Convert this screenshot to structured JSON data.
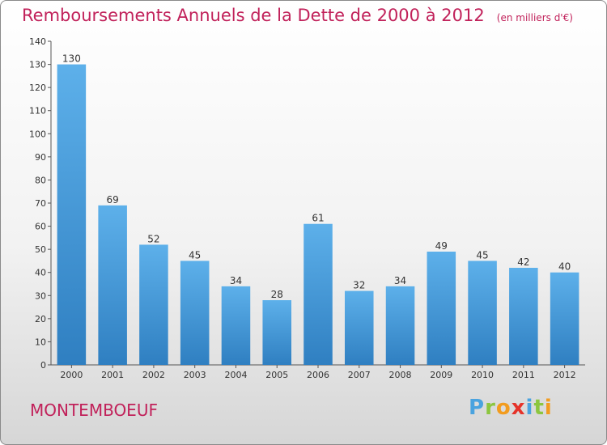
{
  "chart_data": {
    "type": "bar",
    "title": "Remboursements Annuels de la Dette de 2000 à 2012",
    "subtitle": "(en milliers d'€)",
    "categories": [
      "2000",
      "2001",
      "2002",
      "2003",
      "2004",
      "2005",
      "2006",
      "2007",
      "2008",
      "2009",
      "2010",
      "2011",
      "2012"
    ],
    "values": [
      130,
      69,
      52,
      45,
      34,
      28,
      61,
      32,
      34,
      49,
      45,
      42,
      40
    ],
    "ylim": [
      0,
      140
    ],
    "yticks": [
      0,
      10,
      20,
      30,
      40,
      50,
      60,
      70,
      80,
      90,
      100,
      110,
      120,
      130,
      140
    ],
    "grid": false,
    "bar_color": "#4a9fde"
  },
  "commune": "MONTEMBOEUF",
  "logo": "Proxiti",
  "colors": {
    "title": "#c1215a",
    "bar_top": "#5db0ea",
    "bar_bottom": "#2f7fc1"
  }
}
